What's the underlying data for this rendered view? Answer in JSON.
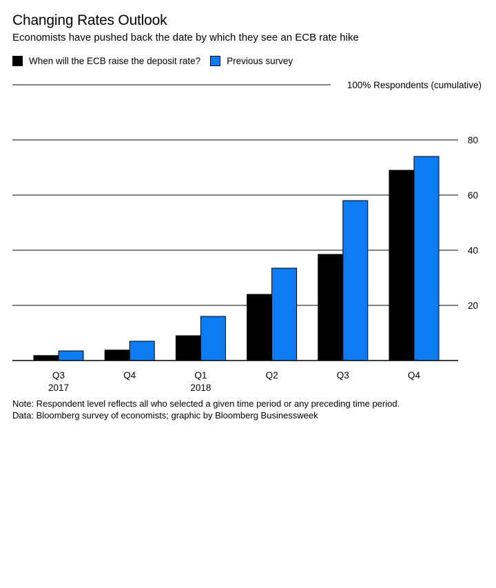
{
  "title": "Changing Rates Outlook",
  "subtitle": "Economists have pushed back the date by which they see an ECB rate hike",
  "legend": [
    {
      "label": "When will the ECB raise the deposit rate?",
      "color": "#000000"
    },
    {
      "label": "Previous survey",
      "color": "#0d7cf2"
    }
  ],
  "notes": {
    "note": "Note: Respondent level reflects all who selected a given time period or any preceding time period.",
    "source": "Data: Bloomberg survey of economists; graphic by Bloomberg Businessweek"
  },
  "chart_data": {
    "type": "bar",
    "title": "Changing Rates Outlook",
    "ylabel": "100% Respondents (cumulative)",
    "ylim": [
      0,
      100
    ],
    "yticks": [
      20,
      40,
      60,
      80
    ],
    "grid": true,
    "legend_position": "top-left",
    "categories": [
      "Q3",
      "Q4",
      "Q1",
      "Q2",
      "Q3",
      "Q4"
    ],
    "category_sublabels": [
      "2017",
      "",
      "2018",
      "",
      "",
      ""
    ],
    "series": [
      {
        "name": "When will the ECB raise the deposit rate?",
        "color": "#000000",
        "values": [
          1.8,
          3.8,
          9,
          24,
          38.5,
          69
        ]
      },
      {
        "name": "Previous survey",
        "color": "#0d7cf2",
        "values": [
          3.5,
          7,
          16,
          33.5,
          58,
          74
        ]
      }
    ]
  }
}
